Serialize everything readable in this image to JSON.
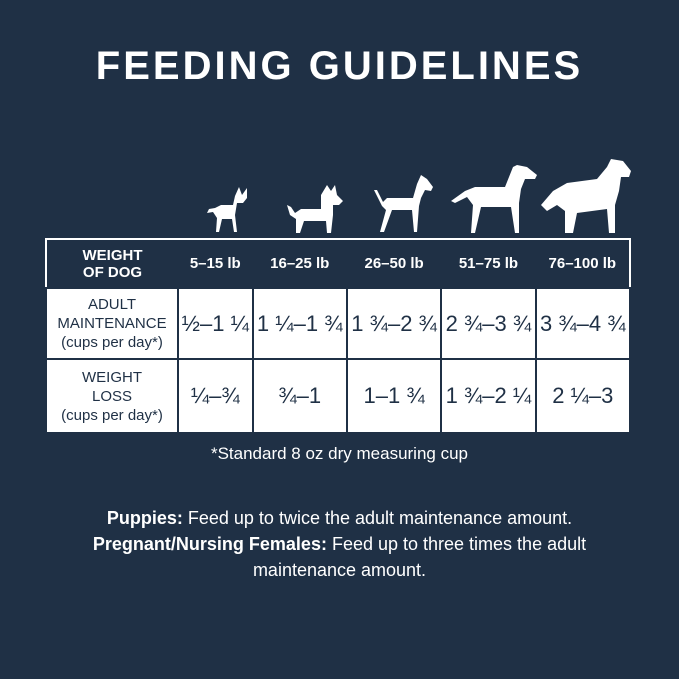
{
  "title": "FEEDING GUIDELINES",
  "colors": {
    "background": "#1f3045",
    "text": "#ffffff",
    "cell": "#ffffff"
  },
  "icons": [
    "chihuahua-icon",
    "terrier-icon",
    "boxer-icon",
    "labrador-icon",
    "newfoundland-icon"
  ],
  "table": {
    "header_label": "WEIGHT OF DOG",
    "columns": [
      "5–15 lb",
      "16–25 lb",
      "26–50 lb",
      "51–75 lb",
      "76–100 lb"
    ],
    "rows": [
      {
        "label": "ADULT MAINTENANCE",
        "unit": "(cups per day*)",
        "values": [
          "½–1 ¼",
          "1 ¼–1 ¾",
          "1 ¾–2 ¾",
          "2 ¾–3 ¾",
          "3 ¾–4 ¾"
        ]
      },
      {
        "label": "WEIGHT LOSS",
        "unit": "(cups per day*)",
        "values": [
          "¼–¾",
          "¾–1",
          "1–1 ¾",
          "1 ¾–2 ¼",
          "2 ¼–3"
        ]
      }
    ]
  },
  "footnote": "*Standard 8 oz dry measuring cup",
  "notes": [
    {
      "label": "Puppies:",
      "text": " Feed up to twice the adult maintenance amount."
    },
    {
      "label": "Pregnant/Nursing Females:",
      "text": " Feed up to three times the adult maintenance amount."
    }
  ]
}
